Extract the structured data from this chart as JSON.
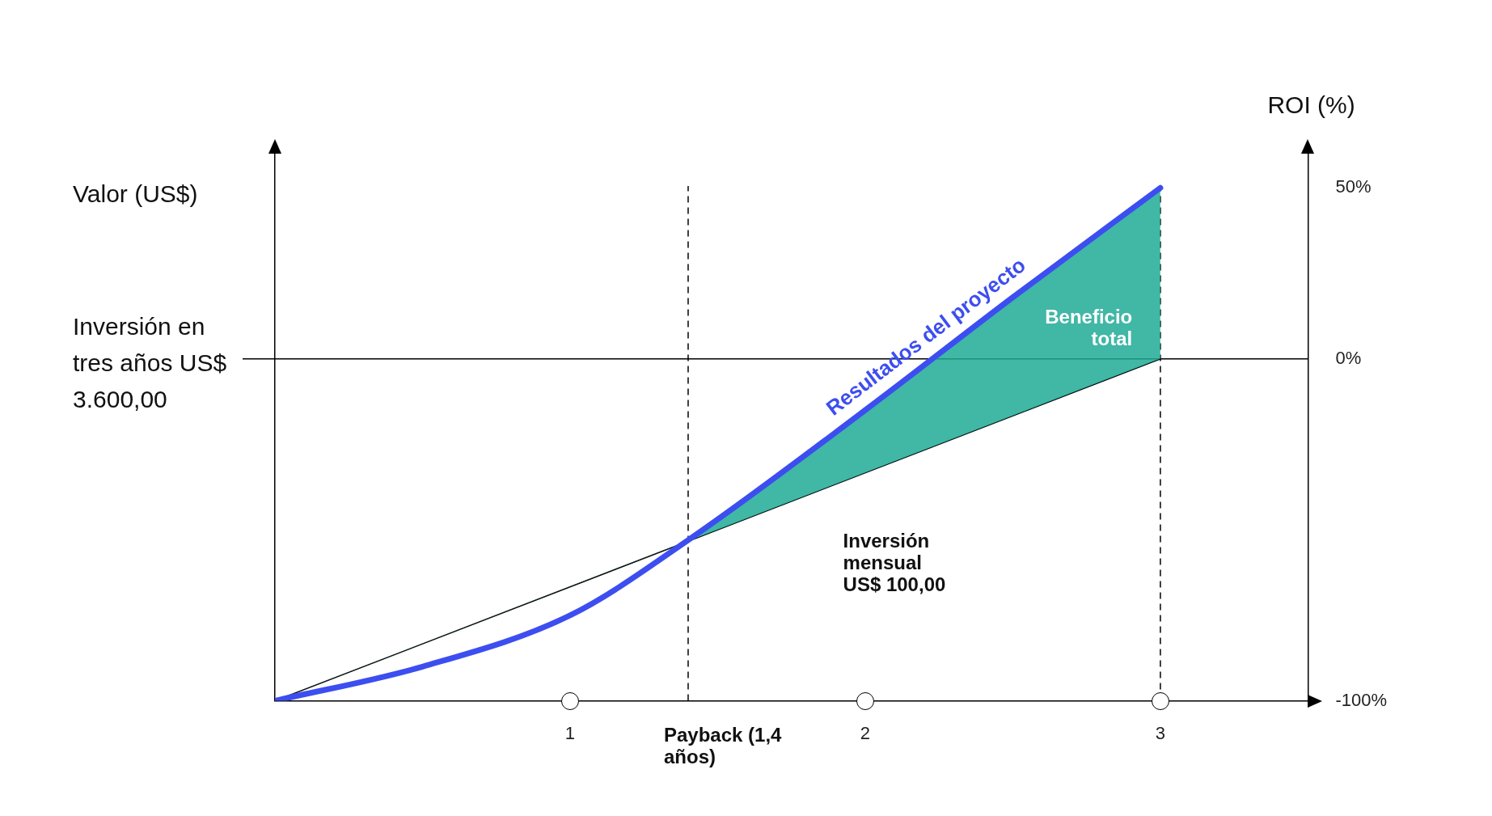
{
  "chart_data": {
    "type": "line",
    "ylabel": "Valor (US$)",
    "y2label": "ROI (%)",
    "xlim": [
      0,
      3.5
    ],
    "xticks": [
      1,
      2,
      3
    ],
    "y2lim": [
      -100,
      60
    ],
    "y2ticks": [
      {
        "value": -100,
        "label": "-100%"
      },
      {
        "value": 0,
        "label": "0%"
      },
      {
        "value": 50,
        "label": "50%"
      }
    ],
    "marker": "none",
    "series": [
      {
        "color": "#000000",
        "axis": "y2",
        "x": [
          0,
          3
        ],
        "values": [
          -100,
          0
        ]
      },
      {
        "name": "Resultados del proyecto",
        "color": "#3d4ef0",
        "axis": "y2",
        "x": [
          0,
          0.5,
          1,
          1.4,
          2,
          2.5,
          3
        ],
        "values": [
          -100,
          -90,
          -75,
          -53,
          -15,
          18,
          50
        ]
      }
    ],
    "ref_lines": [
      {
        "axis": "y2",
        "value": 0,
        "label": "Inversión en tres años US$ 3.600,00",
        "color": "#000000"
      },
      {
        "axis": "x",
        "value": 1.4,
        "label": "Payback (1,4 años)",
        "line_style": "dashed",
        "color": "#000000"
      },
      {
        "axis": "x",
        "value": 3,
        "line_style": "dashed",
        "color": "#000000"
      }
    ],
    "annotations": [
      "Inversión mensual US$ 100,00",
      "Beneficio total"
    ]
  }
}
